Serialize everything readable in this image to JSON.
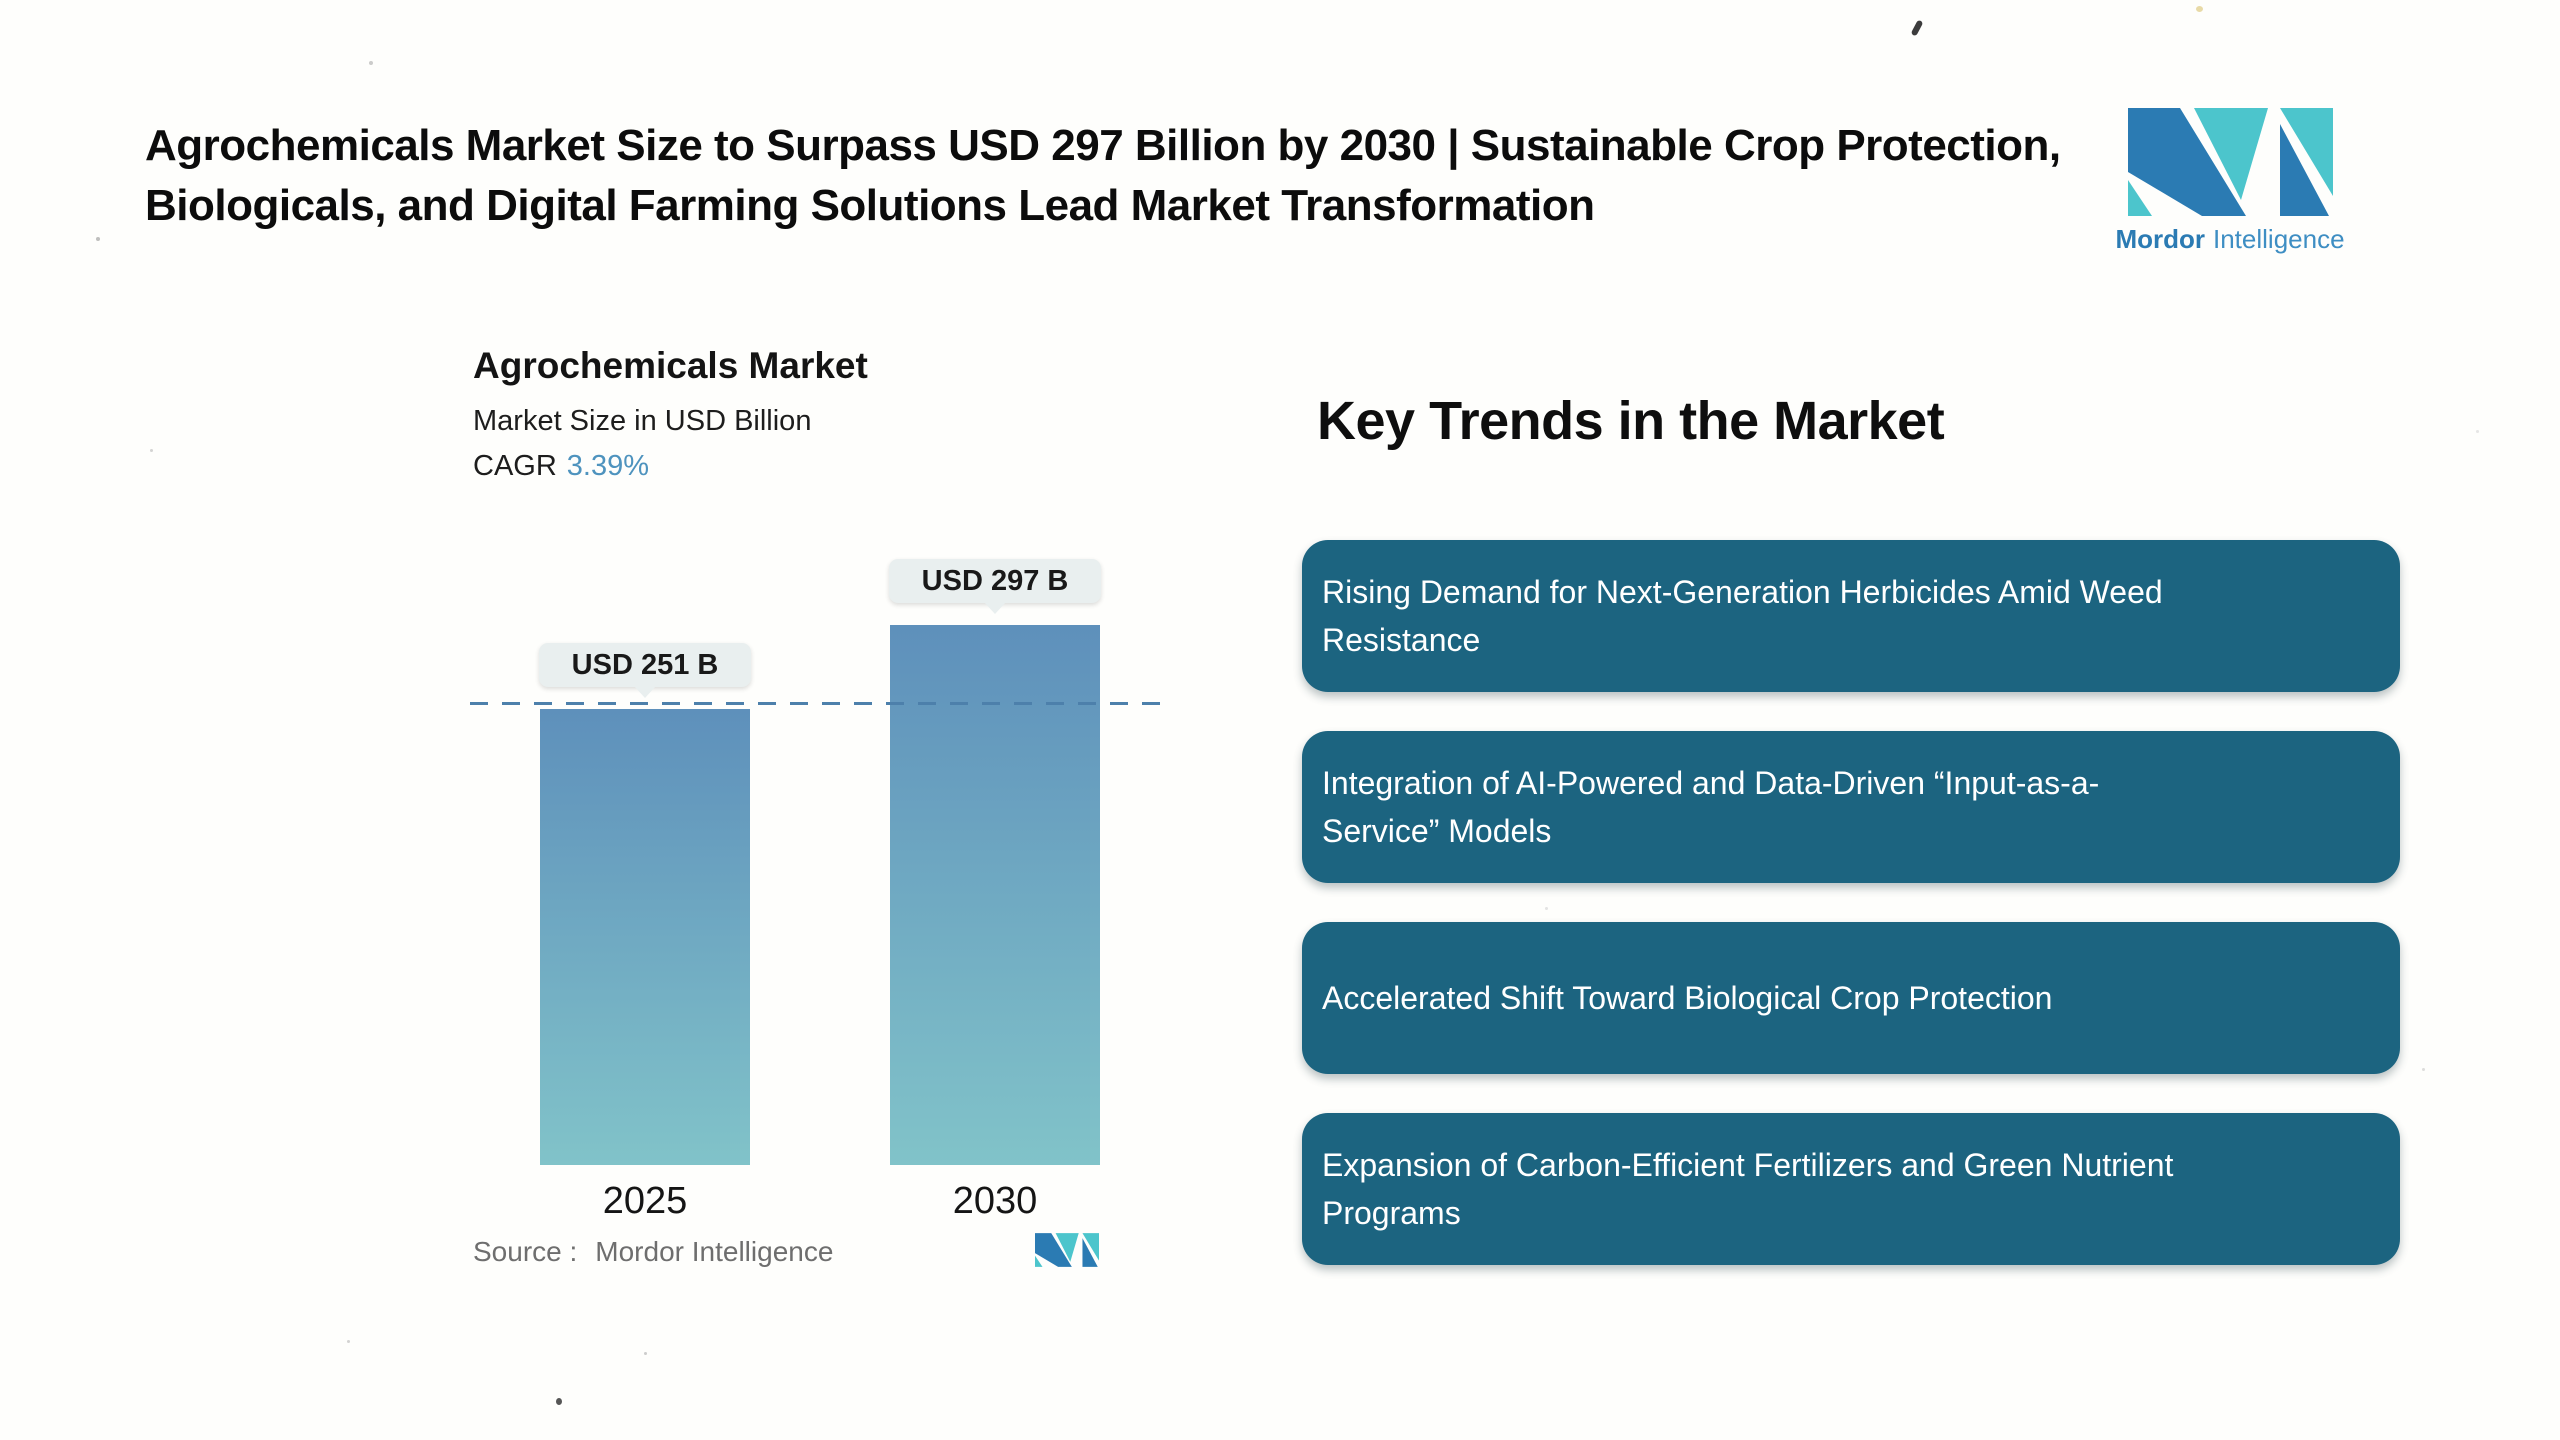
{
  "header": {
    "title": "Agrochemicals Market Size to Surpass USD 297 Billion by 2030 | Sustainable Crop Protection, Biologicals, and Digital Farming Solutions Lead Market Transformation"
  },
  "brand": {
    "name_bold": "Mordor",
    "name_light": "Intelligence"
  },
  "chart_data": {
    "type": "bar",
    "title": "Agrochemicals Market",
    "subtitle": "Market Size in USD Billion",
    "cagr_label": "CAGR",
    "cagr_value": "3.39%",
    "categories": [
      "2025",
      "2030"
    ],
    "values": [
      251,
      297
    ],
    "value_labels": [
      "USD 251 B",
      "USD 297 B"
    ],
    "unit": "USD Billion",
    "ylim": [
      0,
      297
    ],
    "grid": false,
    "legend": "none",
    "reference_line": "horizontal dashed line at 2025 level (USD 251 B)",
    "source_label": "Source :",
    "source_value": "Mordor Intelligence"
  },
  "trends": {
    "heading": "Key Trends in the Market",
    "items": [
      "Rising Demand for Next-Generation Herbicides Amid Weed Resistance",
      "Integration of AI-Powered and Data-Driven “Input-as-a-Service” Models",
      "Accelerated Shift Toward Biological Crop Protection",
      "Expansion of Carbon-Efficient Fertilizers and Green Nutrient Programs"
    ]
  },
  "colors": {
    "trend_box": "#1C6480",
    "bar_top": "#5E90BB",
    "bar_bottom": "#81C3C9",
    "accent_blue": "#4E93BE",
    "logo_blue": "#2B7BB3",
    "logo_teal": "#4CC5CC",
    "dashed_line": "#4D80AB",
    "tooltip_bg": "#E9EFEF",
    "source_gray": "#6E6E6E",
    "background": "#FEFEFC"
  }
}
